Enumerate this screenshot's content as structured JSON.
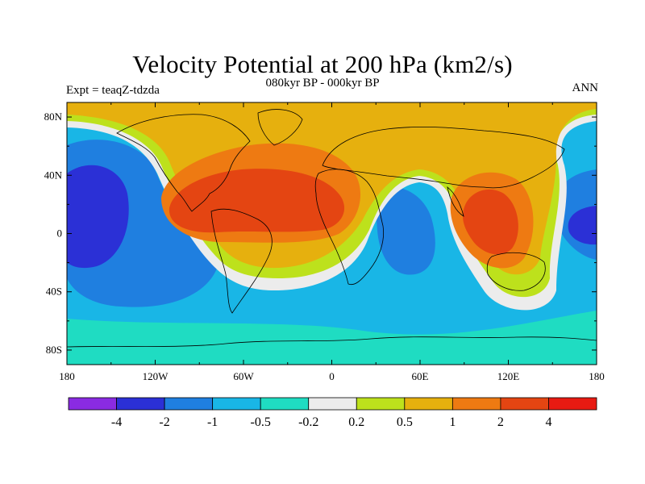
{
  "chart_data": {
    "type": "heatmap",
    "title": "Velocity Potential at 200 hPa (km2/s)",
    "subtitle": "080kyr BP - 000kyr BP",
    "left_label": "Expt = teaqZ-tdzda",
    "right_label": "ANN",
    "x_ticks": [
      "180",
      "120W",
      "60W",
      "0",
      "60E",
      "120E",
      "180"
    ],
    "x_values": [
      -180,
      -120,
      -60,
      0,
      60,
      120,
      180
    ],
    "y_ticks": [
      "80N",
      "40N",
      "0",
      "40S",
      "80S"
    ],
    "y_values": [
      80,
      40,
      0,
      -40,
      -80
    ],
    "xlim": [
      -180,
      180
    ],
    "ylim": [
      -90,
      90
    ],
    "colorbar": {
      "levels": [
        "-4",
        "-2",
        "-1",
        "-0.5",
        "-0.2",
        "0.2",
        "0.5",
        "1",
        "2",
        "4"
      ],
      "colors": [
        "#8a2be2",
        "#2b30d6",
        "#1f7fe0",
        "#19b6e6",
        "#1fdcc2",
        "#ececec",
        "#bde11c",
        "#e6b00e",
        "#ee7a12",
        "#e44512",
        "#e81a12"
      ]
    },
    "field_features": [
      {
        "label": "positive max, Atlantic/Americas",
        "lon": -75,
        "lat": 10,
        "level": "2 to 4"
      },
      {
        "label": "positive max, Maritime Continent",
        "lon": 105,
        "lat": 0,
        "level": "2 to 4"
      },
      {
        "label": "negative min, central Pacific",
        "lon": -150,
        "lat": 0,
        "level": "-2 to -4"
      },
      {
        "label": "negative min, Indian Ocean",
        "lon": 55,
        "lat": 0,
        "level": "-1 to -2"
      },
      {
        "label": "negative min, west Pacific",
        "lon": 165,
        "lat": 5,
        "level": "-2 to -4"
      }
    ]
  }
}
